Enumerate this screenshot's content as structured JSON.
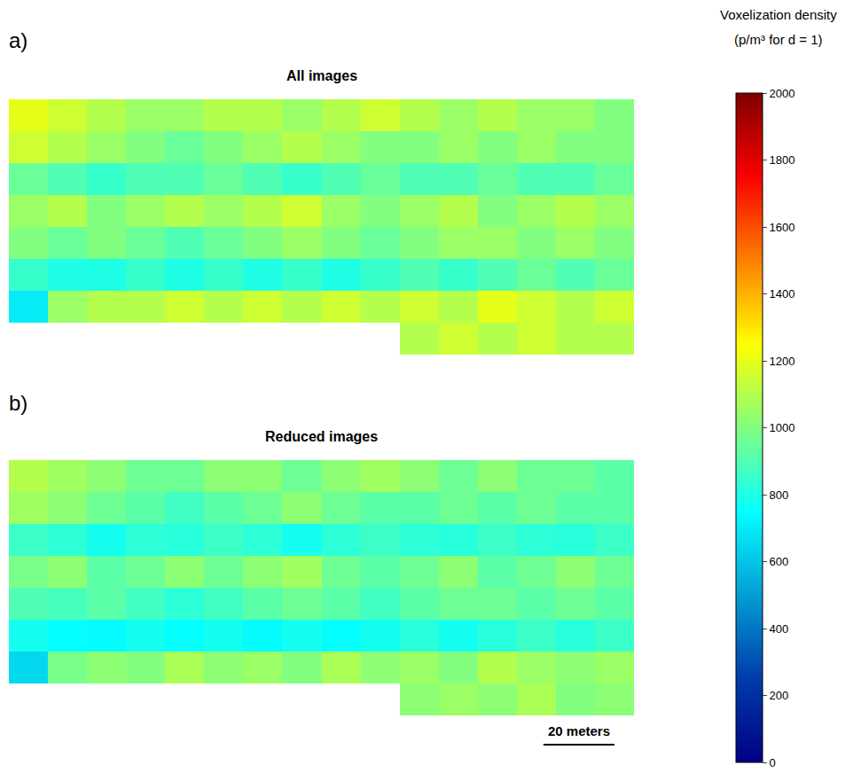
{
  "chart_data": {
    "type": "heatmap",
    "color": "Jet",
    "tick_labels": false,
    "xlim": [
      0,
      176
    ],
    "ylim": [
      0,
      75
    ],
    "x": [
      5.5,
      16.5,
      27.5,
      38.5,
      49.5,
      60.5,
      71.5,
      82.5,
      93.5,
      104.5,
      115.5,
      126.5,
      137.5,
      148.5,
      159.5,
      170.5
    ],
    "y": [
      4.5,
      13.5,
      22.5,
      31.5,
      40.5,
      49.5,
      58.5,
      67.5
    ],
    "panels": [
      {
        "label": "a)",
        "title": "All images",
        "z": [
          [
            null,
            null,
            null,
            null,
            null,
            null,
            null,
            null,
            null,
            null,
            1100,
            1150,
            1100,
            1150,
            1100,
            1100
          ],
          [
            700,
            1050,
            1100,
            1100,
            1150,
            1100,
            1150,
            1100,
            1150,
            1100,
            1150,
            1100,
            1200,
            1150,
            1100,
            1150
          ],
          [
            850,
            800,
            800,
            850,
            800,
            850,
            800,
            850,
            800,
            850,
            900,
            850,
            900,
            950,
            900,
            950
          ],
          [
            1000,
            950,
            1000,
            950,
            900,
            950,
            1000,
            1050,
            1000,
            950,
            1000,
            1050,
            1050,
            1000,
            1050,
            1000
          ],
          [
            1050,
            1100,
            1000,
            1050,
            1100,
            1050,
            1100,
            1150,
            1050,
            1000,
            1050,
            1100,
            1000,
            1050,
            1100,
            1050
          ],
          [
            950,
            900,
            850,
            900,
            900,
            950,
            900,
            850,
            900,
            950,
            900,
            900,
            950,
            900,
            900,
            950
          ],
          [
            1150,
            1100,
            1050,
            1000,
            950,
            1000,
            1050,
            1100,
            1050,
            1000,
            1000,
            1050,
            1000,
            1050,
            1000,
            1000
          ],
          [
            1200,
            1150,
            1100,
            1050,
            1050,
            1100,
            1100,
            1050,
            1100,
            1150,
            1100,
            1050,
            1100,
            1050,
            1050,
            1000
          ]
        ]
      },
      {
        "label": "b)",
        "title": "Reduced images",
        "z": [
          [
            null,
            null,
            null,
            null,
            null,
            null,
            null,
            null,
            null,
            null,
            1020,
            1050,
            1020,
            1080,
            1000,
            1020
          ],
          [
            650,
            980,
            1020,
            1000,
            1080,
            1020,
            1050,
            1000,
            1080,
            1020,
            1050,
            1000,
            1100,
            1050,
            1020,
            1050
          ],
          [
            780,
            750,
            740,
            780,
            750,
            780,
            740,
            780,
            750,
            780,
            820,
            780,
            820,
            860,
            820,
            860
          ],
          [
            900,
            880,
            920,
            870,
            830,
            870,
            920,
            960,
            920,
            870,
            920,
            960,
            960,
            920,
            960,
            920
          ],
          [
            980,
            1020,
            920,
            960,
            1020,
            960,
            1020,
            1060,
            960,
            920,
            960,
            1020,
            920,
            960,
            1020,
            960
          ],
          [
            860,
            830,
            780,
            830,
            820,
            860,
            830,
            780,
            830,
            860,
            830,
            820,
            860,
            830,
            820,
            860
          ],
          [
            1060,
            1020,
            960,
            920,
            870,
            920,
            960,
            1020,
            960,
            920,
            920,
            960,
            920,
            960,
            920,
            920
          ],
          [
            1100,
            1060,
            1020,
            960,
            960,
            1020,
            1020,
            960,
            1020,
            1060,
            1020,
            960,
            1020,
            960,
            960,
            920
          ]
        ]
      }
    ],
    "colorbar": {
      "title": "Voxelization density",
      "subtitle": "(p/m³ for d = 1)",
      "range": [
        0,
        2000
      ],
      "ticks": [
        0,
        200,
        400,
        600,
        800,
        1000,
        1200,
        1400,
        1600,
        1800,
        2000
      ]
    },
    "scale_bar": {
      "label": "20 meters",
      "length": 20
    }
  }
}
